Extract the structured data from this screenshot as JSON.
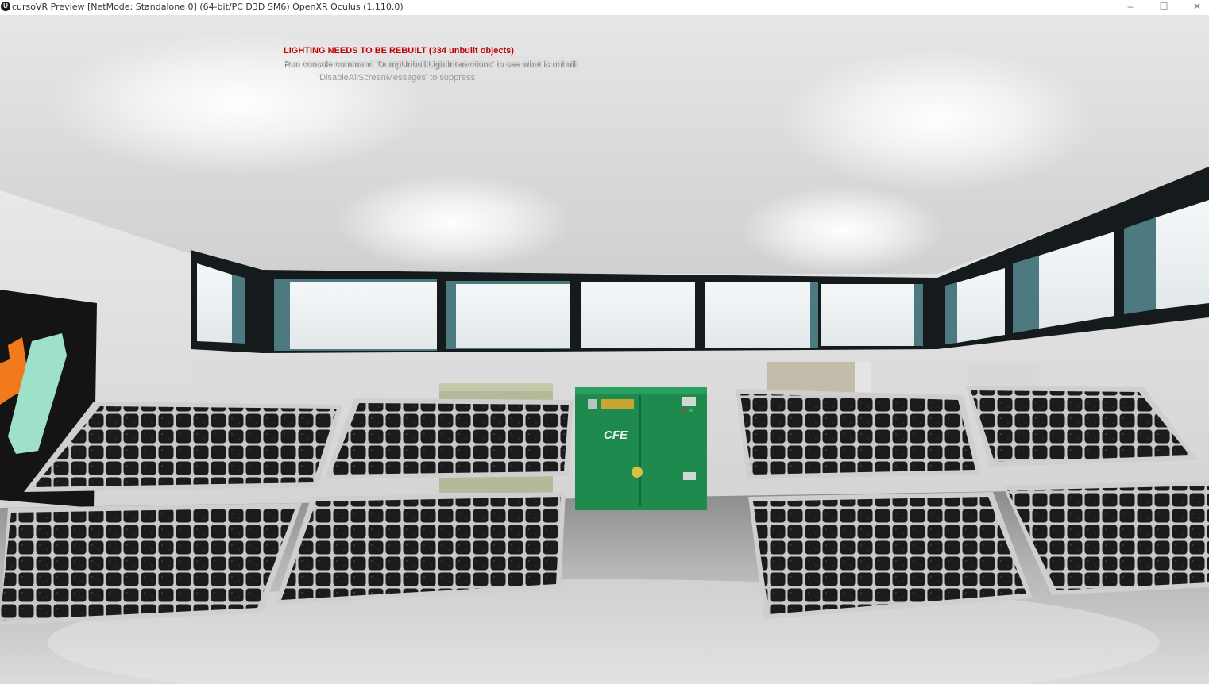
{
  "window": {
    "title": "cursoVR Preview [NetMode: Standalone 0]  (64-bit/PC D3D SM6) OpenXR Oculus (1.110.0)",
    "app_icon": "unreal-engine-icon",
    "controls": {
      "minimize": "–",
      "maximize": "☐",
      "close": "✕"
    }
  },
  "messages": {
    "warning": "LIGHTING NEEDS TO BE REBUILT (334 unbuilt objects)",
    "hint": "Run console command 'DumpUnbuiltLightInteractions' to see what is unbuilt",
    "suppress": "'DisableAllScreenMessages' to suppress"
  },
  "scene": {
    "cabinet_label": "CFE",
    "cabinet_color": "#1e8a4e",
    "panel_color": "#1b1b1d",
    "warning_color": "#c40000"
  }
}
